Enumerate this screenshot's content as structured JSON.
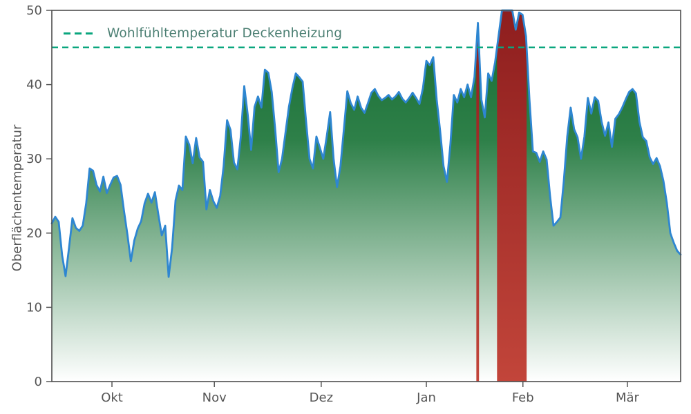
{
  "chart_data": {
    "type": "area",
    "title": "",
    "xlabel": "",
    "ylabel": "Oberflächentemperatur",
    "ylim": [
      0,
      50
    ],
    "xlim": [
      0,
      183
    ],
    "grid": false,
    "legend_position": "upper left",
    "yticks": [
      0,
      10,
      20,
      30,
      40,
      50
    ],
    "xticks": [
      {
        "day": 17.5,
        "label": "Okt"
      },
      {
        "day": 47.3,
        "label": "Nov"
      },
      {
        "day": 78.4,
        "label": "Dez"
      },
      {
        "day": 109.0,
        "label": "Jan"
      },
      {
        "day": 137.1,
        "label": "Feb"
      },
      {
        "day": 167.5,
        "label": "Mär"
      }
    ],
    "threshold": {
      "value": 45,
      "label": "Wohlfühltemperatur Deckenheizung"
    },
    "series": [
      {
        "name": "Oberflächentemperatur",
        "values": [
          21.3,
          22.2,
          21.5,
          17.0,
          14.2,
          18.0,
          22.0,
          20.7,
          20.3,
          21.0,
          24.0,
          28.7,
          28.4,
          26.5,
          25.6,
          27.6,
          25.4,
          26.5,
          27.5,
          27.7,
          26.5,
          23.0,
          19.8,
          16.2,
          19.0,
          20.6,
          21.6,
          24.0,
          25.3,
          24.1,
          25.5,
          22.5,
          19.7,
          21.0,
          14.1,
          18.0,
          24.4,
          26.4,
          25.8,
          33.0,
          31.9,
          29.4,
          32.8,
          30.2,
          29.6,
          23.2,
          25.8,
          24.3,
          23.4,
          25.0,
          29.0,
          35.2,
          33.9,
          29.5,
          28.6,
          33.0,
          39.8,
          36.0,
          31.2,
          37.0,
          38.4,
          36.9,
          42.0,
          41.6,
          39.0,
          34.0,
          28.2,
          30.0,
          33.5,
          37.0,
          39.5,
          41.5,
          41.0,
          40.4,
          35.0,
          30.0,
          28.7,
          33.0,
          31.5,
          30.0,
          33.0,
          36.3,
          30.0,
          26.2,
          29.0,
          34.0,
          39.1,
          37.5,
          36.6,
          38.4,
          36.9,
          36.2,
          37.5,
          38.9,
          39.4,
          38.5,
          37.9,
          38.2,
          38.6,
          38.0,
          38.4,
          39.0,
          38.1,
          37.6,
          38.2,
          38.9,
          38.2,
          37.4,
          39.5,
          43.2,
          42.6,
          43.7,
          38.0,
          33.8,
          29.0,
          26.9,
          32.0,
          38.6,
          37.6,
          39.4,
          38.3,
          40.0,
          38.3,
          41.0,
          48.3,
          38.0,
          35.6,
          41.5,
          40.5,
          43.0,
          46.5,
          50.0,
          50.0,
          50.0,
          50.0,
          47.4,
          49.7,
          49.4,
          46.5,
          38.0,
          31.0,
          30.8,
          29.6,
          31.0,
          29.9,
          25.0,
          21.0,
          21.5,
          22.1,
          27.0,
          33.0,
          36.9,
          34.0,
          32.9,
          30.0,
          33.0,
          38.2,
          36.1,
          38.3,
          37.8,
          35.0,
          33.1,
          34.9,
          31.6,
          35.4,
          36.0,
          36.9,
          38.0,
          39.0,
          39.4,
          38.8,
          35.0,
          32.9,
          32.4,
          30.2,
          29.3,
          30.1,
          29.0,
          27.0,
          24.0,
          20.0,
          18.7,
          17.6,
          17.1
        ]
      }
    ],
    "colors": {
      "line": "#2e86d1",
      "threshold_line": "#0aa67e",
      "legend_text": "#4c7f73",
      "axis": "#555555",
      "fill_stops": [
        [
          "0",
          "#156b30"
        ],
        [
          "0.35",
          "#2e8049"
        ],
        [
          "1",
          "#ffffff"
        ]
      ],
      "over_stops": [
        [
          "0",
          "#8e1e1e"
        ],
        [
          "1",
          "#c2453a"
        ]
      ]
    }
  }
}
